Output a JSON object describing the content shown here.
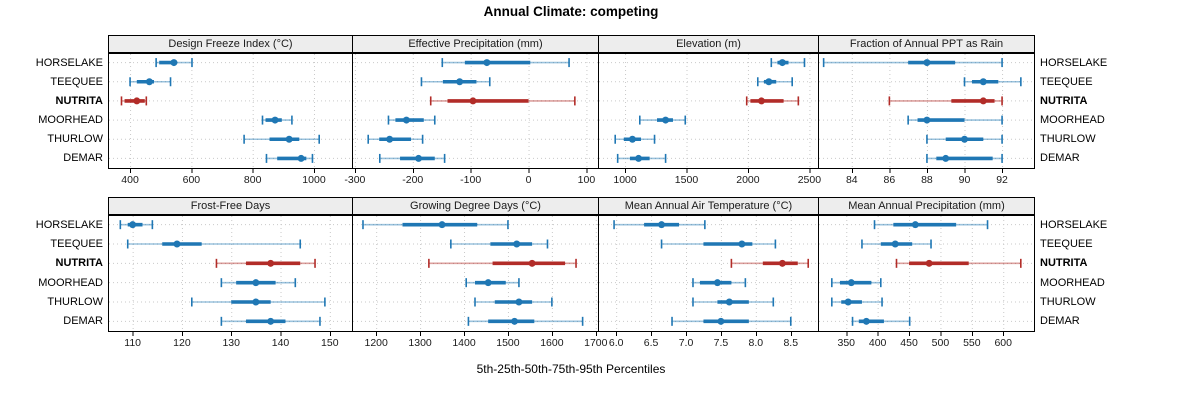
{
  "title": "Annual Climate: competing",
  "xlabel": "5th-25th-50th-75th-95th Percentiles",
  "sites": [
    "HORSELAKE",
    "TEEQUEE",
    "NUTRITA",
    "MOORHEAD",
    "THURLOW",
    "DEMAR"
  ],
  "highlight_site": "NUTRITA",
  "colors": {
    "series": "#1f77b4",
    "series_light": "rgba(31,119,180,0.45)",
    "highlight": "#b22c28",
    "highlight_light": "rgba(178,44,40,0.45)",
    "grid": "#c9c9c9",
    "strip_bg": "#ededed",
    "border": "#000000",
    "text": "#000000"
  },
  "chart_data": {
    "type": "dot-whisker-trellis",
    "percentiles": [
      5,
      25,
      50,
      75,
      95
    ],
    "rows_label_note": "5th-25th-50th-75th-95th Percentiles",
    "panels": [
      {
        "id": "design-freeze-index",
        "row": 0,
        "col": 0,
        "title": "Design Freeze Index (°C)",
        "xlim": [
          328,
          1124
        ],
        "ticks": [
          400,
          600,
          800,
          1000
        ],
        "tick_labels": [
          "400",
          "600",
          "800",
          "1000"
        ],
        "values": {
          "HORSELAKE": [
            485,
            495,
            543,
            550,
            602
          ],
          "TEEQUEE": [
            400,
            422,
            463,
            478,
            532
          ],
          "NUTRITA": [
            372,
            382,
            422,
            448,
            453
          ],
          "MOORHEAD": [
            832,
            842,
            873,
            895,
            928
          ],
          "THURLOW": [
            772,
            855,
            919,
            952,
            1017
          ],
          "DEMAR": [
            845,
            880,
            958,
            975,
            995
          ]
        }
      },
      {
        "id": "effective-precipitation",
        "row": 0,
        "col": 1,
        "title": "Effective Precipitation (mm)",
        "xlim": [
          -305,
          120
        ],
        "ticks": [
          -300,
          -200,
          -100,
          0,
          100
        ],
        "tick_labels": [
          "-300",
          "-200",
          "-100",
          "0",
          "100"
        ],
        "values": {
          "HORSELAKE": [
            -149,
            -110,
            -72,
            3,
            70
          ],
          "TEEQUEE": [
            -185,
            -148,
            -119,
            -90,
            -67
          ],
          "NUTRITA": [
            -169,
            -140,
            -96,
            0,
            80
          ],
          "MOORHEAD": [
            -242,
            -230,
            -211,
            -181,
            -162
          ],
          "THURLOW": [
            -277,
            -258,
            -240,
            -203,
            -183
          ],
          "DEMAR": [
            -257,
            -222,
            -190,
            -162,
            -145
          ]
        }
      },
      {
        "id": "elevation",
        "row": 0,
        "col": 2,
        "title": "Elevation (m)",
        "xlim": [
          780,
          2570
        ],
        "ticks": [
          1000,
          1500,
          2000,
          2500
        ],
        "tick_labels": [
          "1000",
          "1500",
          "2000",
          "2500"
        ],
        "values": {
          "HORSELAKE": [
            2190,
            2240,
            2280,
            2330,
            2460
          ],
          "TEEQUEE": [
            2080,
            2130,
            2170,
            2230,
            2360
          ],
          "NUTRITA": [
            1990,
            2020,
            2110,
            2290,
            2410
          ],
          "MOORHEAD": [
            1120,
            1260,
            1330,
            1390,
            1490
          ],
          "THURLOW": [
            920,
            990,
            1060,
            1130,
            1240
          ],
          "DEMAR": [
            940,
            1040,
            1110,
            1200,
            1330
          ]
        }
      },
      {
        "id": "fraction-annual-ppt-as-rain",
        "row": 0,
        "col": 3,
        "title": "Fraction of Annual PPT as Rain",
        "xlim": [
          82.2,
          93.7
        ],
        "ticks": [
          84,
          86,
          88,
          90,
          92
        ],
        "tick_labels": [
          "84",
          "86",
          "88",
          "90",
          "92"
        ],
        "values": {
          "HORSELAKE": [
            82.5,
            87,
            88,
            89.5,
            92
          ],
          "TEEQUEE": [
            90,
            90.4,
            91,
            91.8,
            93
          ],
          "NUTRITA": [
            86,
            89.3,
            91,
            91.6,
            92
          ],
          "MOORHEAD": [
            87,
            87.5,
            88,
            90,
            92
          ],
          "THURLOW": [
            88,
            89,
            90,
            91,
            92
          ],
          "DEMAR": [
            88,
            88.5,
            89,
            91.5,
            92
          ]
        }
      },
      {
        "id": "frost-free-days",
        "row": 1,
        "col": 0,
        "title": "Frost-Free Days",
        "xlim": [
          105,
          154.5
        ],
        "ticks": [
          110,
          120,
          130,
          140,
          150
        ],
        "tick_labels": [
          "110",
          "120",
          "130",
          "140",
          "150"
        ],
        "values": {
          "HORSELAKE": [
            107.5,
            109,
            110,
            112,
            114
          ],
          "TEEQUEE": [
            109,
            116,
            119,
            124,
            144
          ],
          "NUTRITA": [
            127,
            133,
            138,
            144,
            147
          ],
          "MOORHEAD": [
            128,
            131,
            135,
            139,
            143
          ],
          "THURLOW": [
            122,
            130,
            135,
            138,
            149
          ],
          "DEMAR": [
            128,
            133,
            138,
            141,
            148
          ]
        }
      },
      {
        "id": "growing-degree-days",
        "row": 1,
        "col": 1,
        "title": "Growing Degree Days (°C)",
        "xlim": [
          1145,
          1705
        ],
        "ticks": [
          1200,
          1300,
          1400,
          1500,
          1600,
          1700
        ],
        "tick_labels": [
          "1200",
          "1300",
          "1400",
          "1500",
          "1600",
          "1700"
        ],
        "values": {
          "HORSELAKE": [
            1170,
            1260,
            1350,
            1430,
            1500
          ],
          "TEEQUEE": [
            1370,
            1460,
            1520,
            1555,
            1590
          ],
          "NUTRITA": [
            1320,
            1465,
            1555,
            1630,
            1655
          ],
          "MOORHEAD": [
            1405,
            1425,
            1455,
            1495,
            1525
          ],
          "THURLOW": [
            1425,
            1470,
            1525,
            1555,
            1600
          ],
          "DEMAR": [
            1410,
            1455,
            1515,
            1560,
            1670
          ]
        }
      },
      {
        "id": "mean-annual-air-temperature",
        "row": 1,
        "col": 2,
        "title": "Mean Annual Air Temperature (°C)",
        "xlim": [
          5.74,
          8.89
        ],
        "ticks": [
          6.0,
          6.5,
          7.0,
          7.5,
          8.0,
          8.5
        ],
        "tick_labels": [
          "6.0",
          "6.5",
          "7.0",
          "7.5",
          "8.0",
          "8.5"
        ],
        "values": {
          "HORSELAKE": [
            5.97,
            6.4,
            6.65,
            6.9,
            7.27
          ],
          "TEEQUEE": [
            6.65,
            7.25,
            7.8,
            7.95,
            8.28
          ],
          "NUTRITA": [
            7.65,
            8.1,
            8.38,
            8.6,
            8.75
          ],
          "MOORHEAD": [
            7.1,
            7.2,
            7.45,
            7.65,
            7.85
          ],
          "THURLOW": [
            7.1,
            7.45,
            7.62,
            7.9,
            8.25
          ],
          "DEMAR": [
            6.8,
            7.25,
            7.5,
            7.9,
            8.5
          ]
        }
      },
      {
        "id": "mean-annual-precipitation",
        "row": 1,
        "col": 3,
        "title": "Mean Annual Precipitation (mm)",
        "xlim": [
          305,
          649
        ],
        "ticks": [
          350,
          400,
          450,
          500,
          550,
          600
        ],
        "tick_labels": [
          "350",
          "400",
          "450",
          "500",
          "550",
          "600"
        ],
        "values": {
          "HORSELAKE": [
            395,
            425,
            460,
            525,
            575
          ],
          "TEEQUEE": [
            375,
            405,
            428,
            455,
            485
          ],
          "NUTRITA": [
            430,
            450,
            482,
            545,
            628
          ],
          "MOORHEAD": [
            327,
            340,
            358,
            390,
            405
          ],
          "THURLOW": [
            327,
            342,
            353,
            375,
            407
          ],
          "DEMAR": [
            360,
            370,
            382,
            410,
            451
          ]
        }
      }
    ]
  }
}
